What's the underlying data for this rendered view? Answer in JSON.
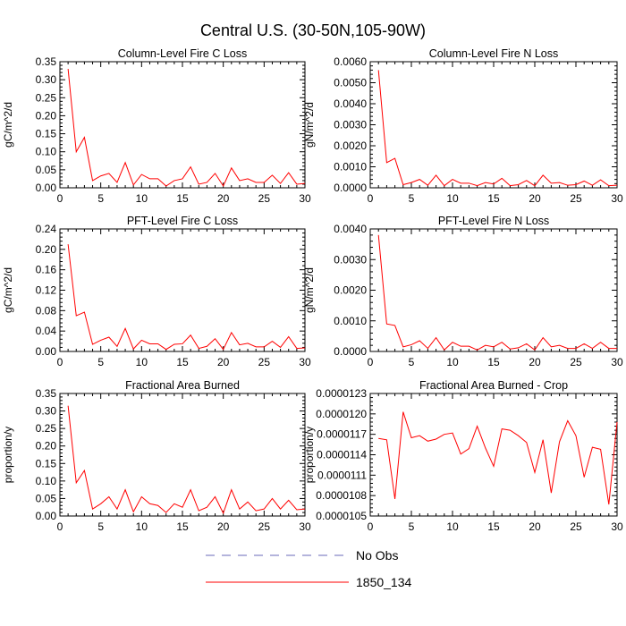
{
  "figure": {
    "title": "Central U.S. (30-50N,105-90W)"
  },
  "legend": {
    "items": [
      {
        "label": "No Obs",
        "color": "#6a6ab8",
        "dashed": true
      },
      {
        "label": "1850_134",
        "color": "#ff0000",
        "dashed": false
      }
    ]
  },
  "chart_data": [
    {
      "type": "line",
      "title": "Column-Level Fire C Loss",
      "ylabel": "gC/m^2/d",
      "xlim": [
        0,
        30
      ],
      "xticks": [
        "0",
        "5",
        "10",
        "15",
        "20",
        "25",
        "30"
      ],
      "ylim": [
        0,
        0.35
      ],
      "yticks": [
        "0.00",
        "0.05",
        "0.10",
        "0.15",
        "0.20",
        "0.25",
        "0.30",
        "0.35"
      ],
      "series": [
        {
          "color": "#ff0000",
          "x": [
            1,
            2,
            3,
            4,
            5,
            6,
            7,
            8,
            9,
            10,
            11,
            12,
            13,
            14,
            15,
            16,
            17,
            18,
            19,
            20,
            21,
            22,
            23,
            24,
            25,
            26,
            27,
            28,
            29,
            30
          ],
          "y": [
            0.33,
            0.1,
            0.14,
            0.02,
            0.033,
            0.04,
            0.015,
            0.07,
            0.008,
            0.037,
            0.025,
            0.025,
            0.005,
            0.02,
            0.025,
            0.058,
            0.01,
            0.015,
            0.04,
            0.005,
            0.055,
            0.02,
            0.025,
            0.015,
            0.015,
            0.035,
            0.012,
            0.042,
            0.01,
            0.012
          ]
        }
      ]
    },
    {
      "type": "line",
      "title": "Column-Level Fire N Loss",
      "ylabel": "gN/m^2/d",
      "xlim": [
        0,
        30
      ],
      "xticks": [
        "0",
        "5",
        "10",
        "15",
        "20",
        "25",
        "30"
      ],
      "ylim": [
        0,
        0.006
      ],
      "yticks": [
        "0.0000",
        "0.0010",
        "0.0020",
        "0.0030",
        "0.0040",
        "0.0050",
        "0.0060"
      ],
      "series": [
        {
          "color": "#ff0000",
          "x": [
            1,
            2,
            3,
            4,
            5,
            6,
            7,
            8,
            9,
            10,
            11,
            12,
            13,
            14,
            15,
            16,
            17,
            18,
            19,
            20,
            21,
            22,
            23,
            24,
            25,
            26,
            27,
            28,
            29,
            30
          ],
          "y": [
            0.0056,
            0.0012,
            0.0014,
            0.00015,
            0.00025,
            0.0004,
            0.00012,
            0.0006,
            0.0001,
            0.0004,
            0.00022,
            0.00022,
            0.0001,
            0.00025,
            0.00018,
            0.00045,
            0.0001,
            0.00015,
            0.00035,
            0.0001,
            0.0006,
            0.00022,
            0.00025,
            0.00012,
            0.00015,
            0.00032,
            0.00012,
            0.00038,
            0.0001,
            0.00012
          ]
        }
      ]
    },
    {
      "type": "line",
      "title": "PFT-Level Fire C Loss",
      "ylabel": "gC/m^2/d",
      "xlim": [
        0,
        30
      ],
      "xticks": [
        "0",
        "5",
        "10",
        "15",
        "20",
        "25",
        "30"
      ],
      "ylim": [
        0,
        0.24
      ],
      "yticks": [
        "0.00",
        "0.04",
        "0.08",
        "0.12",
        "0.16",
        "0.20",
        "0.24"
      ],
      "series": [
        {
          "color": "#ff0000",
          "x": [
            1,
            2,
            3,
            4,
            5,
            6,
            7,
            8,
            9,
            10,
            11,
            12,
            13,
            14,
            15,
            16,
            17,
            18,
            19,
            20,
            21,
            22,
            23,
            24,
            25,
            26,
            27,
            28,
            29,
            30
          ],
          "y": [
            0.21,
            0.07,
            0.077,
            0.014,
            0.022,
            0.028,
            0.01,
            0.045,
            0.005,
            0.022,
            0.015,
            0.015,
            0.004,
            0.014,
            0.015,
            0.032,
            0.006,
            0.01,
            0.025,
            0.004,
            0.037,
            0.013,
            0.016,
            0.009,
            0.009,
            0.02,
            0.008,
            0.029,
            0.006,
            0.007
          ]
        }
      ]
    },
    {
      "type": "line",
      "title": "PFT-Level Fire N Loss",
      "ylabel": "gN/m^2/d",
      "xlim": [
        0,
        30
      ],
      "xticks": [
        "0",
        "5",
        "10",
        "15",
        "20",
        "25",
        "30"
      ],
      "ylim": [
        0,
        0.004
      ],
      "yticks": [
        "0.0000",
        "0.0010",
        "0.0020",
        "0.0030",
        "0.0040"
      ],
      "series": [
        {
          "color": "#ff0000",
          "x": [
            1,
            2,
            3,
            4,
            5,
            6,
            7,
            8,
            9,
            10,
            11,
            12,
            13,
            14,
            15,
            16,
            17,
            18,
            19,
            20,
            21,
            22,
            23,
            24,
            25,
            26,
            27,
            28,
            29,
            30
          ],
          "y": [
            0.0038,
            0.0009,
            0.00085,
            0.00015,
            0.00022,
            0.00035,
            0.0001,
            0.00045,
            5e-05,
            0.0003,
            0.00017,
            0.00017,
            5e-05,
            0.0002,
            0.00015,
            0.0003,
            8e-05,
            0.00012,
            0.00025,
            5e-05,
            0.00045,
            0.00015,
            0.0002,
            0.0001,
            0.0001,
            0.00025,
            0.0001,
            0.0003,
            0.0001,
            0.0001
          ]
        }
      ]
    },
    {
      "type": "line",
      "title": "Fractional Area Burned",
      "ylabel": "proportion/y",
      "xlim": [
        0,
        30
      ],
      "xticks": [
        "0",
        "5",
        "10",
        "15",
        "20",
        "25",
        "30"
      ],
      "ylim": [
        0,
        0.35
      ],
      "yticks": [
        "0.00",
        "0.05",
        "0.10",
        "0.15",
        "0.20",
        "0.25",
        "0.30",
        "0.35"
      ],
      "series": [
        {
          "color": "#ff0000",
          "x": [
            1,
            2,
            3,
            4,
            5,
            6,
            7,
            8,
            9,
            10,
            11,
            12,
            13,
            14,
            15,
            16,
            17,
            18,
            19,
            20,
            21,
            22,
            23,
            24,
            25,
            26,
            27,
            28,
            29,
            30
          ],
          "y": [
            0.315,
            0.095,
            0.13,
            0.02,
            0.035,
            0.055,
            0.02,
            0.075,
            0.012,
            0.055,
            0.035,
            0.03,
            0.01,
            0.035,
            0.025,
            0.075,
            0.015,
            0.025,
            0.055,
            0.008,
            0.075,
            0.02,
            0.04,
            0.015,
            0.02,
            0.05,
            0.02,
            0.045,
            0.018,
            0.02
          ]
        }
      ]
    },
    {
      "type": "line",
      "title": "Fractional Area Burned - Crop",
      "ylabel": "proportion/y",
      "xlim": [
        0,
        30
      ],
      "xticks": [
        "0",
        "5",
        "10",
        "15",
        "20",
        "25",
        "30"
      ],
      "ylim": [
        1.05e-05,
        1.23e-05
      ],
      "yticks": [
        "0.0000105",
        "0.0000108",
        "0.0000111",
        "0.0000114",
        "0.0000117",
        "0.0000120",
        "0.0000123"
      ],
      "series": [
        {
          "color": "#ff0000",
          "x": [
            1,
            2,
            3,
            4,
            5,
            6,
            7,
            8,
            9,
            10,
            11,
            12,
            13,
            14,
            15,
            16,
            17,
            18,
            19,
            20,
            21,
            22,
            23,
            24,
            25,
            26,
            27,
            28,
            29,
            30
          ],
          "y": [
            1.164e-05,
            1.162e-05,
            1.075e-05,
            1.203e-05,
            1.165e-05,
            1.168e-05,
            1.16e-05,
            1.163e-05,
            1.17e-05,
            1.172e-05,
            1.141e-05,
            1.149e-05,
            1.182e-05,
            1.15e-05,
            1.123e-05,
            1.178e-05,
            1.176e-05,
            1.168e-05,
            1.158e-05,
            1.114e-05,
            1.162e-05,
            1.084e-05,
            1.159e-05,
            1.19e-05,
            1.168e-05,
            1.107e-05,
            1.151e-05,
            1.148e-05,
            1.067e-05,
            1.188e-05
          ]
        }
      ]
    }
  ]
}
